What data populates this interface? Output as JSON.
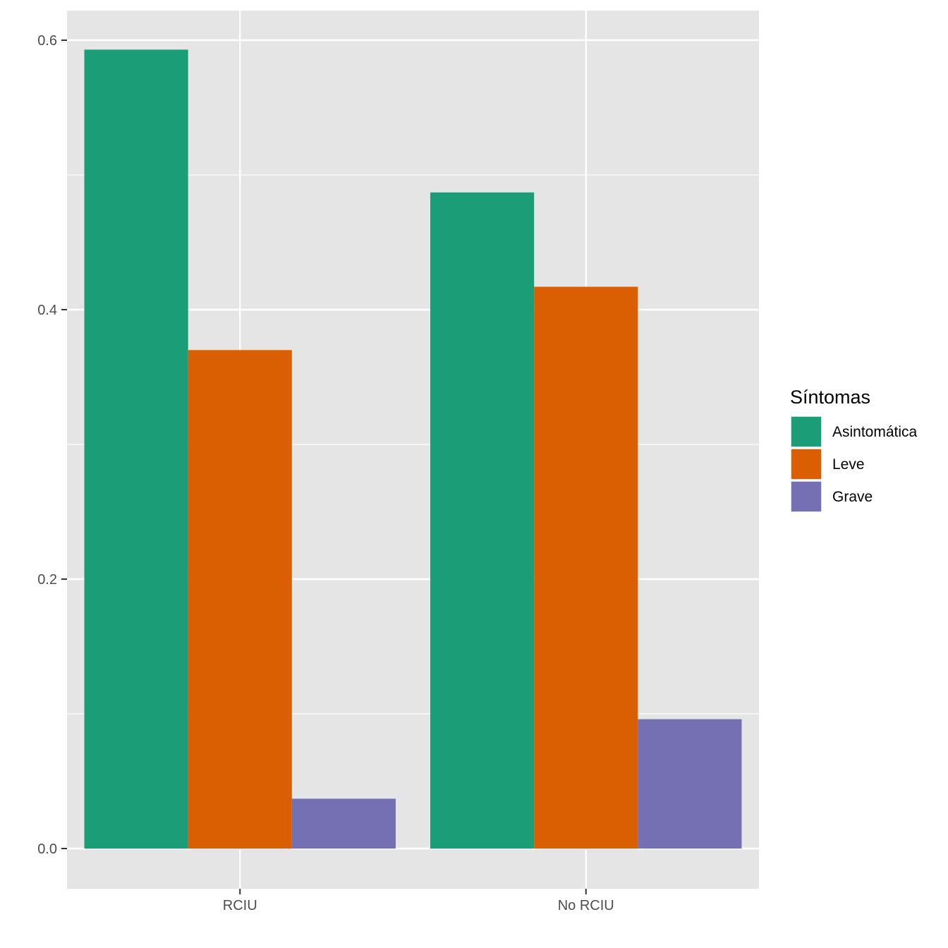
{
  "chart_data": {
    "type": "bar",
    "categories": [
      "RCIU",
      "No RCIU"
    ],
    "series": [
      {
        "name": "Asintomática",
        "color": "#1b9e77",
        "values": [
          0.593,
          0.487
        ]
      },
      {
        "name": "Leve",
        "color": "#d95f02",
        "values": [
          0.37,
          0.417
        ]
      },
      {
        "name": "Grave",
        "color": "#7570b3",
        "values": [
          0.037,
          0.096
        ]
      }
    ],
    "y_ticks": [
      0.0,
      0.2,
      0.4,
      0.6
    ],
    "y_tick_labels": [
      "0.0",
      "0.2",
      "0.4",
      "0.6"
    ],
    "ylim": [
      -0.029,
      0.622
    ],
    "legend_title": "Síntomas",
    "legend_position": "right",
    "grid": true,
    "xlabel": "",
    "ylabel": "",
    "title": ""
  }
}
